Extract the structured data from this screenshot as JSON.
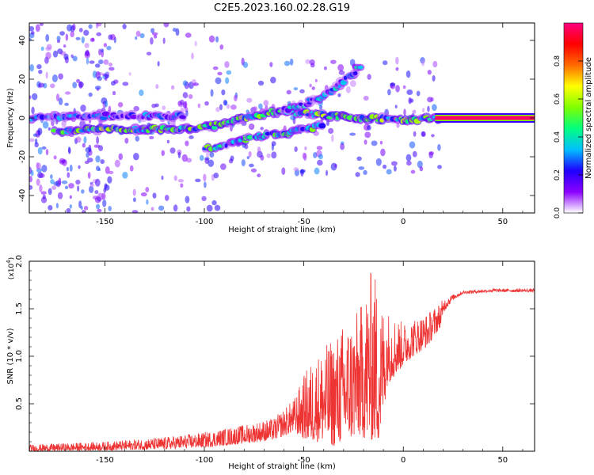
{
  "figure_title": "C2E5.2023.160.02.28.G19",
  "chart_data": [
    {
      "type": "heatmap",
      "xlabel": "Height of straight line (km)",
      "ylabel": "Frequency (Hz)",
      "xlim": [
        -188,
        66
      ],
      "ylim": [
        -49,
        49
      ],
      "xticks": [
        -150,
        -100,
        -50,
        0,
        50
      ],
      "yticks": [
        -40,
        -20,
        0,
        20,
        40
      ],
      "colorbar": {
        "label": "Normalized spectral amplitude",
        "range": [
          0,
          1
        ],
        "ticks": [
          0.0,
          0.2,
          0.4,
          0.6,
          0.8
        ],
        "colormap": [
          "#ffffff",
          "#8b00ff",
          "#1f00ff",
          "#00bfff",
          "#00ff80",
          "#7fff00",
          "#ffff00",
          "#ff6a00",
          "#ff0000",
          "#ff0080"
        ]
      },
      "traces": [
        {
          "points": [
            [
              -175,
              -7
            ],
            [
              -160,
              -6
            ],
            [
              -140,
              -6
            ],
            [
              -120,
              -6
            ],
            [
              -105,
              -5
            ],
            [
              -95,
              -4
            ],
            [
              -85,
              -1
            ],
            [
              -75,
              1
            ],
            [
              -65,
              3
            ],
            [
              -55,
              3
            ],
            [
              -45,
              2
            ],
            [
              -35,
              1
            ],
            [
              -25,
              0
            ],
            [
              -15,
              0
            ],
            [
              -5,
              -1
            ],
            [
              5,
              -1
            ],
            [
              15,
              0
            ],
            [
              20,
              0
            ]
          ],
          "amplitude": 0.45
        },
        {
          "points": [
            [
              -100,
              -16
            ],
            [
              -90,
              -14
            ],
            [
              -80,
              -11
            ],
            [
              -70,
              -9
            ],
            [
              -60,
              -8
            ],
            [
              -50,
              -6
            ],
            [
              -40,
              -4
            ]
          ],
          "amplitude": 0.4
        },
        {
          "points": [
            [
              -60,
              4
            ],
            [
              -50,
              7
            ],
            [
              -40,
              11
            ],
            [
              -32,
              17
            ],
            [
              -25,
              23
            ],
            [
              -20,
              27
            ]
          ],
          "amplitude": 0.3
        },
        {
          "points": [
            [
              -188,
              0
            ],
            [
              -165,
              1
            ],
            [
              -150,
              1
            ],
            [
              -130,
              1
            ],
            [
              -110,
              1
            ]
          ],
          "amplitude": 0.25
        },
        {
          "points": [
            [
              16,
              0
            ],
            [
              66,
              0
            ]
          ],
          "amplitude": 0.98
        }
      ]
    },
    {
      "type": "line",
      "xlabel": "Height of straight line (km)",
      "ylabel": "SNR (10 * v/v)",
      "yscale_label": "(x10",
      "yscale_exponent": "4",
      "yscale_close": ")",
      "xlim": [
        -188,
        66
      ],
      "ylim": [
        0,
        20000
      ],
      "xticks": [
        -150,
        -100,
        -50,
        0,
        50
      ],
      "yticks": [
        5000,
        10000,
        15000,
        20000
      ],
      "ytick_labels": [
        "0.5",
        "1.0",
        "1.5",
        "2.0"
      ],
      "color": "#ee3333",
      "envelope": [
        {
          "x": -188,
          "min": 0,
          "max": 700
        },
        {
          "x": -150,
          "min": 100,
          "max": 1000
        },
        {
          "x": -120,
          "min": 200,
          "max": 1500
        },
        {
          "x": -100,
          "min": 400,
          "max": 2000
        },
        {
          "x": -80,
          "min": 800,
          "max": 2800
        },
        {
          "x": -65,
          "min": 1200,
          "max": 3500
        },
        {
          "x": -55,
          "min": 2000,
          "max": 5500
        },
        {
          "x": -48,
          "min": 1000,
          "max": 9000
        },
        {
          "x": -40,
          "min": 1000,
          "max": 11000
        },
        {
          "x": -35,
          "min": 500,
          "max": 12000
        },
        {
          "x": -30,
          "min": 1000,
          "max": 13500
        },
        {
          "x": -22,
          "min": 1500,
          "max": 15000
        },
        {
          "x": -15,
          "min": 1000,
          "max": 20000
        },
        {
          "x": -12,
          "min": 1000,
          "max": 16000
        },
        {
          "x": -8,
          "min": 7000,
          "max": 15000
        },
        {
          "x": 0,
          "min": 9000,
          "max": 13500
        },
        {
          "x": 5,
          "min": 10000,
          "max": 14000
        },
        {
          "x": 12,
          "min": 11000,
          "max": 14500
        },
        {
          "x": 20,
          "min": 13500,
          "max": 16000
        },
        {
          "x": 25,
          "min": 15500,
          "max": 16500
        },
        {
          "x": 30,
          "min": 16300,
          "max": 16900
        },
        {
          "x": 45,
          "min": 16500,
          "max": 17100
        },
        {
          "x": 66,
          "min": 16500,
          "max": 17100
        }
      ]
    }
  ]
}
